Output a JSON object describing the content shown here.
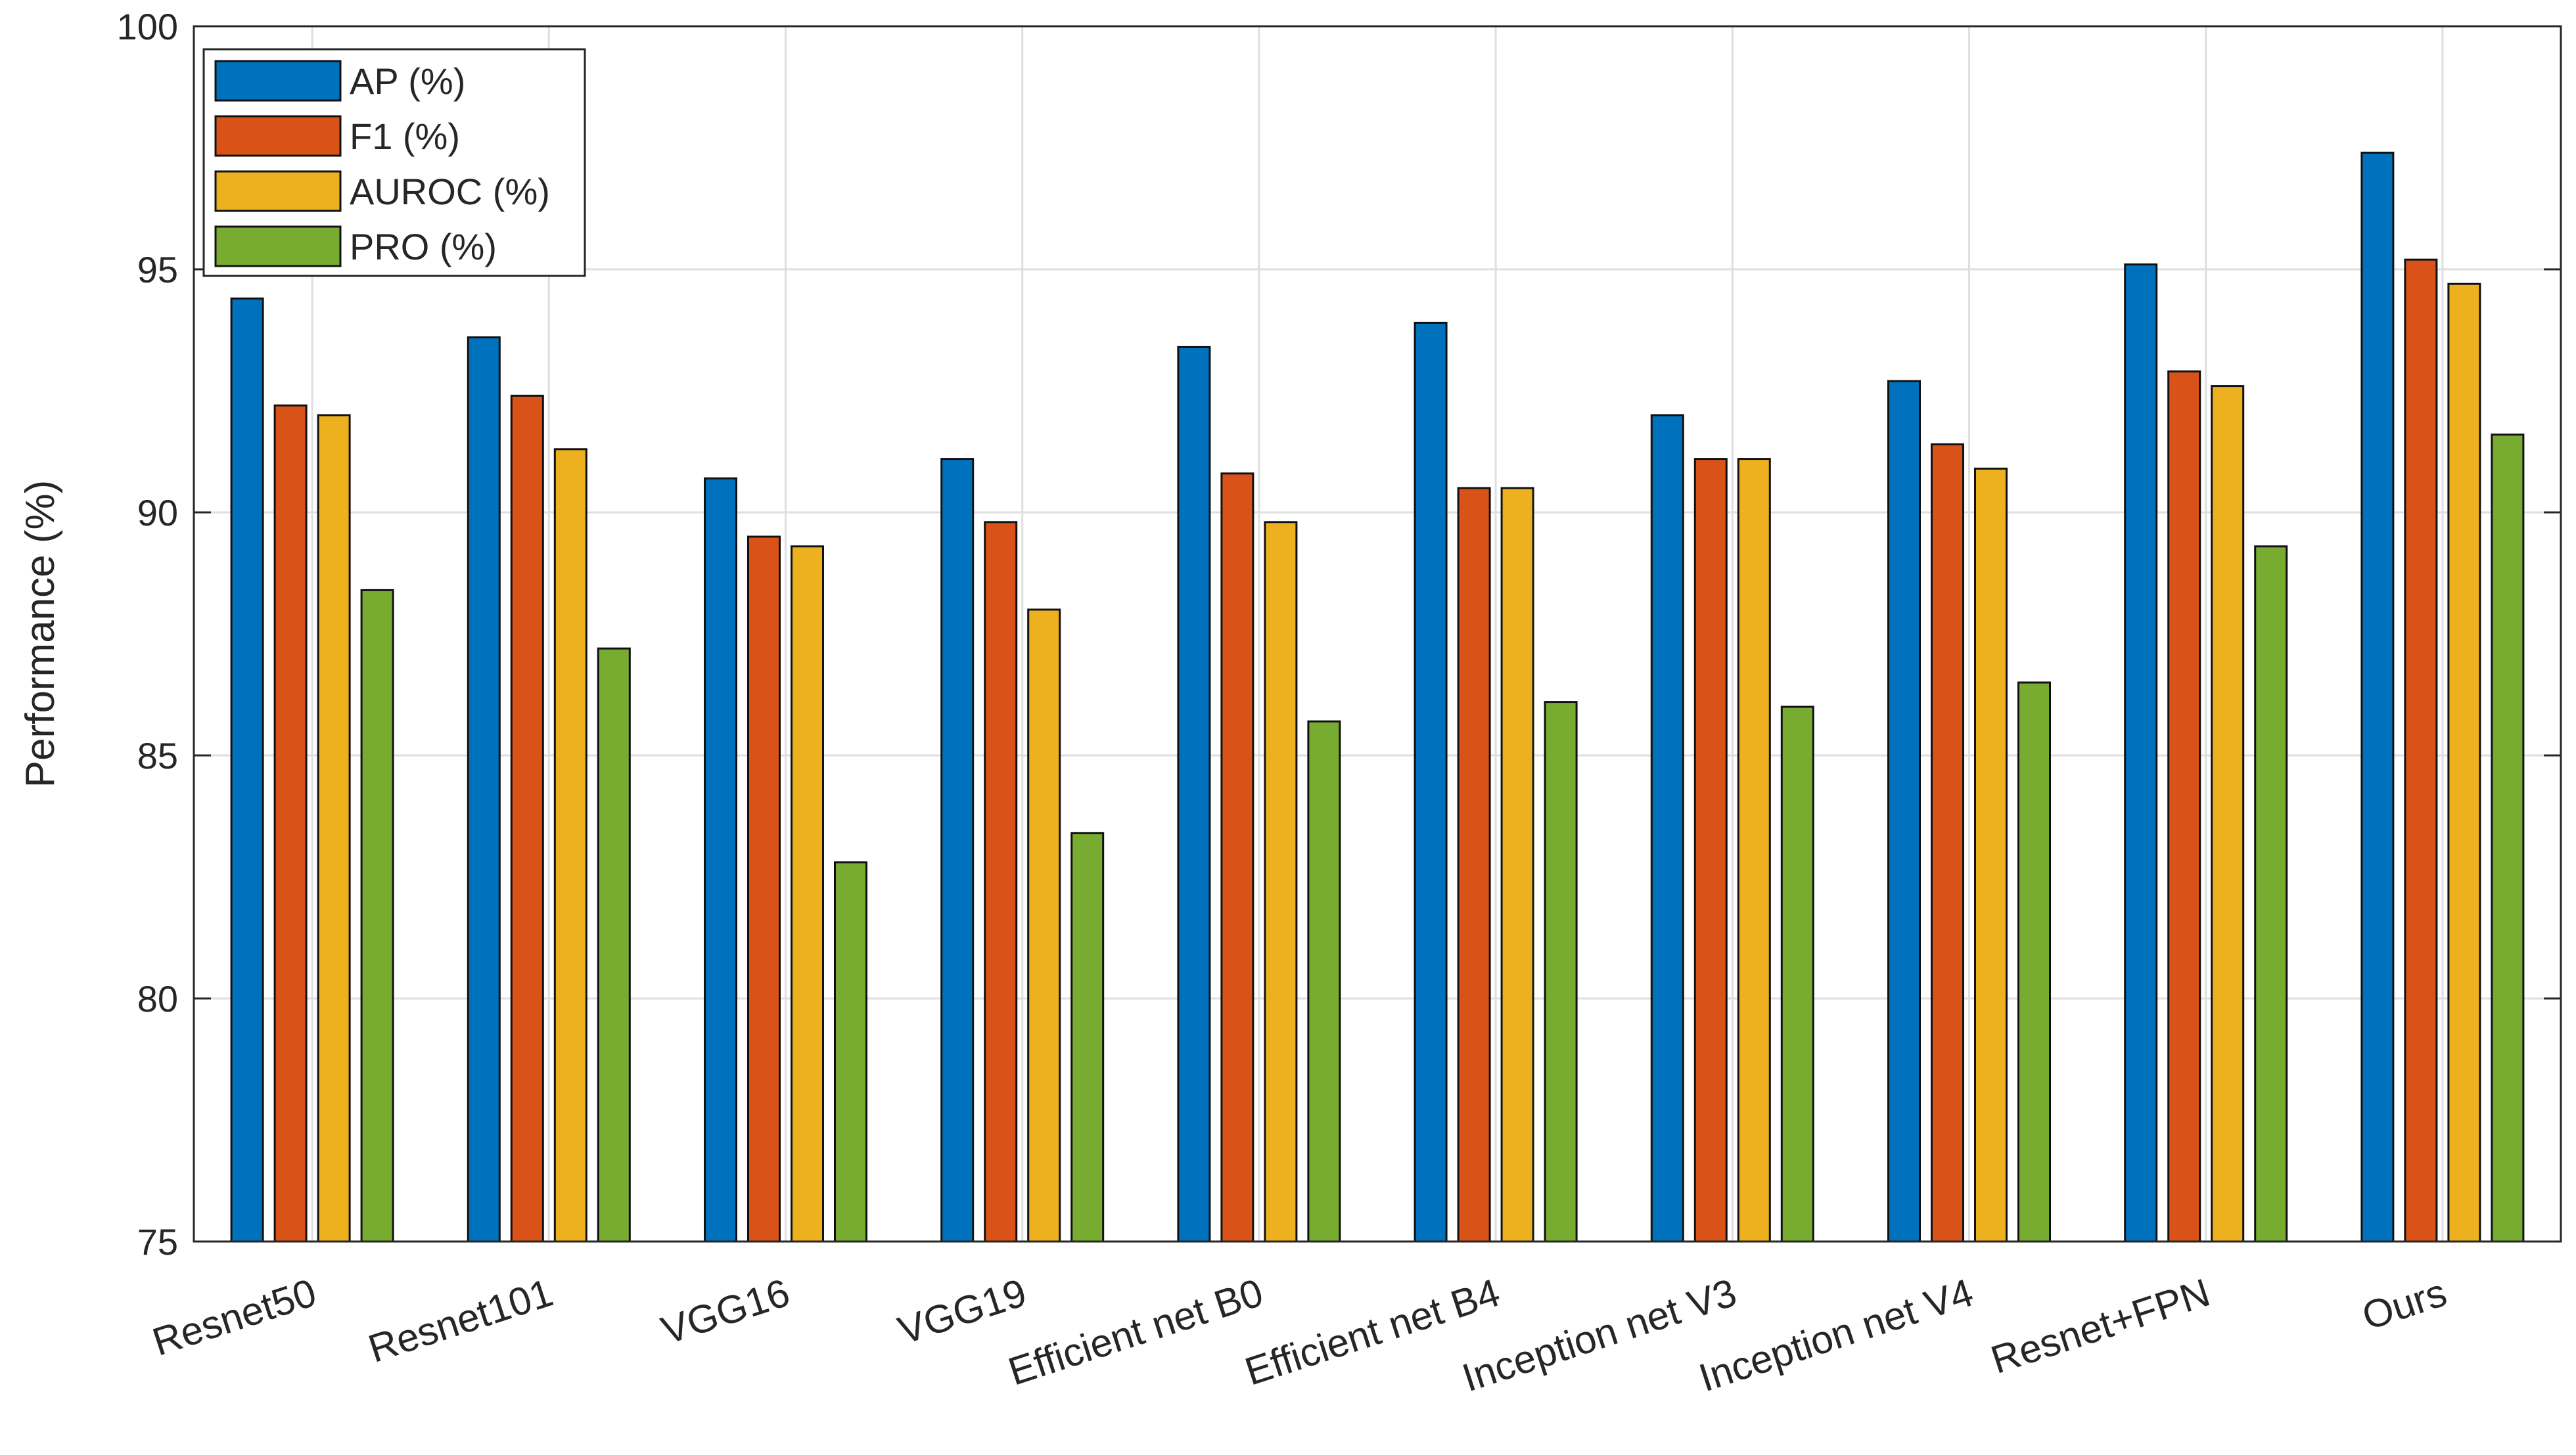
{
  "chart_data": {
    "type": "bar",
    "title": "",
    "xlabel": "",
    "ylabel": "Performance (%)",
    "ylim": [
      75,
      100
    ],
    "yticks": [
      75,
      80,
      85,
      90,
      95,
      100
    ],
    "grid": true,
    "legend_position": "top-left",
    "categories": [
      "Resnet50",
      "Resnet101",
      "VGG16",
      "VGG19",
      "Efficient net B0",
      "Efficient net B4",
      "Inception net V3",
      "Inception net V4",
      "Resnet+FPN",
      "Ours"
    ],
    "series": [
      {
        "name": "AP (%)",
        "color": "#0072BD",
        "values": [
          94.4,
          93.6,
          90.7,
          91.1,
          93.4,
          93.9,
          92.0,
          92.7,
          95.1,
          97.4
        ]
      },
      {
        "name": "F1 (%)",
        "color": "#D95319",
        "values": [
          92.2,
          92.4,
          89.5,
          89.8,
          90.8,
          90.5,
          91.1,
          91.4,
          92.9,
          95.2
        ]
      },
      {
        "name": "AUROC (%)",
        "color": "#EDB120",
        "values": [
          92.0,
          91.3,
          89.3,
          88.0,
          89.8,
          90.5,
          91.1,
          90.9,
          92.6,
          94.7
        ]
      },
      {
        "name": "PRO (%)",
        "color": "#77AC30",
        "values": [
          88.4,
          87.2,
          82.8,
          83.4,
          85.7,
          86.1,
          86.0,
          86.5,
          89.3,
          91.6
        ]
      }
    ]
  }
}
